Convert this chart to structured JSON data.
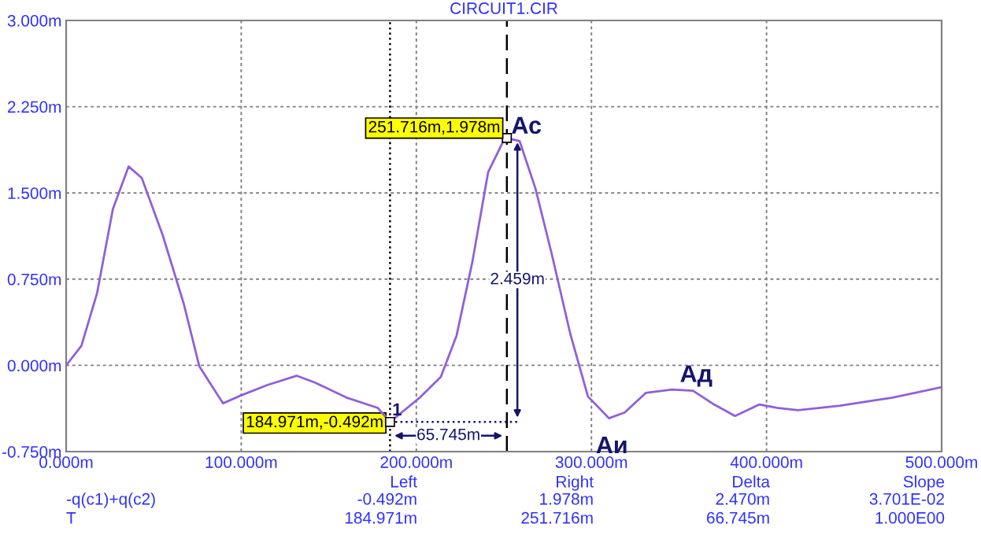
{
  "chart_data": {
    "type": "line",
    "title": "CIRCUIT1.CIR",
    "x": [
      0,
      8.7,
      17.7,
      26.7,
      35.7,
      43.2,
      55.2,
      67.1,
      76.1,
      89.6,
      100.1,
      115.1,
      131.6,
      142.1,
      160.1,
      178,
      184.971,
      202,
      214,
      223,
      232,
      241,
      250,
      251.716,
      259,
      268,
      277,
      288,
      298,
      310,
      319,
      331,
      346,
      358,
      370,
      382,
      396,
      406,
      418,
      442,
      472,
      500
    ],
    "series": [
      {
        "name": "-q(c1)+q(c2)",
        "color": "#9060d8",
        "values": [
          0,
          0.17,
          0.63,
          1.36,
          1.73,
          1.63,
          1.13,
          0.54,
          -0.01,
          -0.33,
          -0.26,
          -0.17,
          -0.09,
          -0.15,
          -0.28,
          -0.37,
          -0.492,
          -0.28,
          -0.1,
          0.26,
          0.9,
          1.68,
          1.96,
          1.978,
          1.95,
          1.54,
          0.99,
          0.27,
          -0.27,
          -0.46,
          -0.41,
          -0.24,
          -0.21,
          -0.22,
          -0.34,
          -0.44,
          -0.34,
          -0.37,
          -0.39,
          -0.35,
          -0.28,
          -0.19
        ]
      }
    ],
    "xlim": [
      0,
      500
    ],
    "ylim": [
      -0.75,
      3.0
    ],
    "xticks": [
      {
        "value": 0,
        "label": "0.000m"
      },
      {
        "value": 100,
        "label": "100.000m"
      },
      {
        "value": 200,
        "label": "200.000m"
      },
      {
        "value": 300,
        "label": "300.000m"
      },
      {
        "value": 400,
        "label": "400.000m"
      },
      {
        "value": 500,
        "label": "500.000m"
      }
    ],
    "yticks": [
      {
        "value": -0.75,
        "label": "-0.750m"
      },
      {
        "value": 0,
        "label": "0.000m"
      },
      {
        "value": 0.75,
        "label": "0.750m"
      },
      {
        "value": 1.5,
        "label": "1.500m"
      },
      {
        "value": 2.25,
        "label": "2.250m"
      },
      {
        "value": 3.0,
        "label": "3.000m"
      }
    ],
    "grid": true,
    "legend": false,
    "marker": "none",
    "line_style": "solid",
    "ref_lines": [
      {
        "axis": "x",
        "value": 184.971,
        "color": "#000000",
        "line_style": "dotted"
      },
      {
        "axis": "x",
        "value": 251.716,
        "color": "#000000",
        "line_style": "dashed"
      }
    ],
    "annotations": [
      {
        "text": "184.971m,-0.492m",
        "x": 184.971,
        "y": -0.492
      },
      {
        "text": "251.716m,1.978m",
        "x": 251.716,
        "y": 1.978
      },
      {
        "text": "1",
        "x": 184.971,
        "y": -0.492
      },
      {
        "text": "Ас",
        "x": 251.716,
        "y": 1.978
      },
      {
        "text": "Аи",
        "x": 310,
        "y": -0.46
      },
      {
        "text": "Ад",
        "x": 358,
        "y": -0.22
      },
      "65.745m",
      "2.459m",
      "Left",
      "Right",
      "Delta",
      "Slope",
      "-0.492m",
      "1.978m",
      "2.470m",
      "3.701E-02",
      "T",
      "184.971m",
      "251.716m",
      "66.745m",
      "1.000E00"
    ]
  }
}
